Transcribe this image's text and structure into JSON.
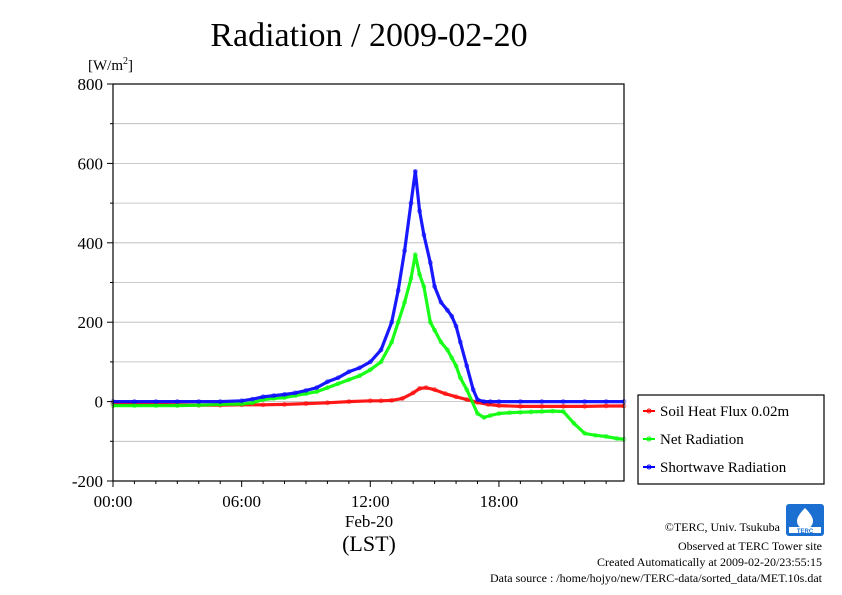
{
  "chart_data": {
    "type": "line",
    "title": "Radiation / 2009-02-20",
    "ylabel": "[W/m2]",
    "ylabel_main": "[W/m",
    "ylabel_sup": "2",
    "ylabel_close": "]",
    "xlabel": "Feb-20",
    "xunit": "(LST)",
    "ylim": [
      -200,
      800
    ],
    "xlim": [
      0,
      23.833
    ],
    "yticks": [
      "800",
      "600",
      "400",
      "200",
      "0",
      "-200"
    ],
    "ytick_values": [
      800,
      600,
      400,
      200,
      0,
      -200
    ],
    "xticks": [
      "00:00",
      "06:00",
      "12:00",
      "18:00"
    ],
    "xtick_values": [
      0,
      6,
      12,
      18
    ],
    "grid": true,
    "legend_position": "right",
    "series": [
      {
        "name": "Soil Heat Flux 0.02m",
        "color": "#ff0000",
        "x": [
          0,
          1,
          2,
          3,
          4,
          5,
          6,
          7,
          8,
          9,
          10,
          11,
          12,
          12.5,
          13,
          13.5,
          14,
          14.3,
          14.6,
          15,
          15.5,
          16,
          16.5,
          17,
          17.5,
          18,
          19,
          20,
          21,
          22,
          23,
          23.83
        ],
        "y": [
          -5,
          -6,
          -7,
          -8,
          -9,
          -9,
          -8,
          -8,
          -7,
          -5,
          -3,
          0,
          2,
          2,
          3,
          8,
          22,
          33,
          35,
          30,
          20,
          12,
          5,
          -2,
          -7,
          -10,
          -12,
          -12,
          -12,
          -12,
          -11,
          -11
        ]
      },
      {
        "name": "Net Radiation",
        "color": "#00ff00",
        "x": [
          0,
          1,
          2,
          3,
          4,
          5,
          6,
          6.5,
          7,
          7.5,
          8,
          8.5,
          9,
          9.5,
          10,
          10.5,
          11,
          11.5,
          12,
          12.5,
          13,
          13.3,
          13.6,
          13.9,
          14.1,
          14.3,
          14.5,
          14.8,
          15,
          15.3,
          15.6,
          15.8,
          16,
          16.2,
          16.5,
          17,
          17.3,
          17.6,
          18,
          18.5,
          19,
          19.5,
          20,
          20.5,
          21,
          21.5,
          22,
          22.5,
          23,
          23.5,
          23.83
        ],
        "y": [
          -10,
          -10,
          -10,
          -10,
          -9,
          -7,
          -6,
          -3,
          5,
          8,
          10,
          15,
          20,
          25,
          35,
          45,
          55,
          65,
          80,
          100,
          150,
          200,
          250,
          310,
          370,
          320,
          290,
          200,
          180,
          150,
          130,
          110,
          90,
          60,
          30,
          -30,
          -40,
          -35,
          -30,
          -28,
          -27,
          -26,
          -25,
          -24,
          -25,
          -55,
          -80,
          -85,
          -88,
          -93,
          -95
        ]
      },
      {
        "name": "Shortwave Radiation",
        "color": "#0000ff",
        "x": [
          0,
          1,
          2,
          3,
          4,
          5,
          6,
          6.5,
          7,
          7.5,
          8,
          8.5,
          9,
          9.5,
          10,
          10.5,
          11,
          11.5,
          12,
          12.5,
          13,
          13.3,
          13.6,
          13.9,
          14.1,
          14.3,
          14.5,
          14.8,
          15,
          15.3,
          15.6,
          15.8,
          16,
          16.2,
          16.5,
          16.8,
          17,
          17.3,
          17.6,
          18,
          19,
          20,
          21,
          22,
          23,
          23.83
        ],
        "y": [
          0,
          0,
          0,
          0,
          0,
          0,
          2,
          6,
          12,
          15,
          18,
          22,
          28,
          35,
          50,
          60,
          75,
          85,
          100,
          130,
          200,
          280,
          380,
          500,
          580,
          480,
          420,
          350,
          290,
          250,
          230,
          215,
          190,
          150,
          90,
          30,
          5,
          0,
          0,
          0,
          0,
          0,
          0,
          0,
          0,
          0
        ]
      }
    ]
  },
  "footer": {
    "credit": "©TERC, Univ. Tsukuba",
    "site": "Observed at TERC Tower site",
    "created": "Created Automatically at 2009-02-20/23:55:15",
    "source": "Data source : /home/hojyo/new/TERC-data/sorted_data/MET.10s.dat",
    "logo_text": "TERC"
  }
}
